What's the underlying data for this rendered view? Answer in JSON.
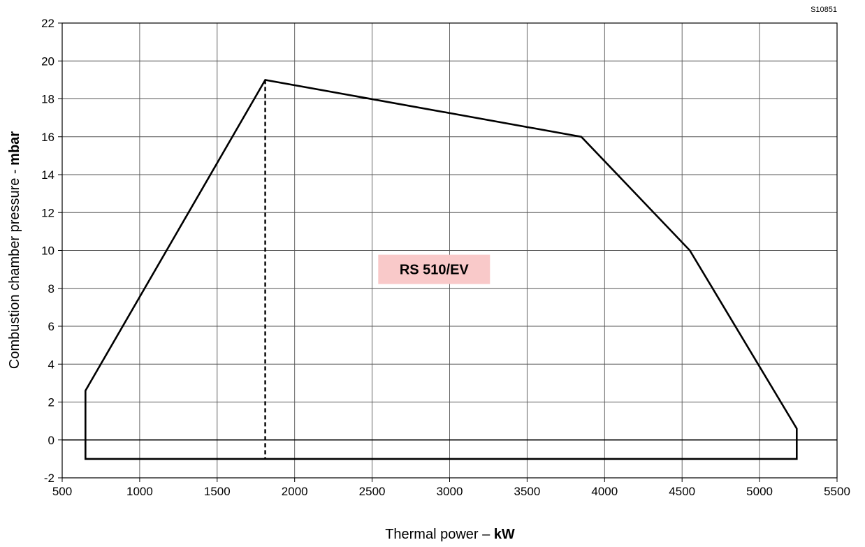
{
  "drawing_code": "S10851",
  "chart_data": {
    "type": "area",
    "xlabel_text": "Thermal power – ",
    "xlabel_unit": "kW",
    "ylabel_text": "Combustion chamber pressure - ",
    "ylabel_unit": "mbar",
    "xlim": [
      500,
      5500
    ],
    "ylim": [
      -2,
      22
    ],
    "x_ticks": [
      500,
      1000,
      1500,
      2000,
      2500,
      3000,
      3500,
      4000,
      4500,
      5000,
      5500
    ],
    "y_ticks": [
      -2,
      0,
      2,
      4,
      6,
      8,
      10,
      12,
      14,
      16,
      18,
      20,
      22
    ],
    "x_tick_labels": [
      "500",
      "1000",
      "1500",
      "2000",
      "2500",
      "3000",
      "3500",
      "4000",
      "4500",
      "5000",
      "5500"
    ],
    "y_tick_labels": [
      "-2",
      "0",
      "2",
      "4",
      "6",
      "8",
      "10",
      "12",
      "14",
      "16",
      "18",
      "20",
      "22"
    ],
    "grid": true,
    "series": [
      {
        "label": "RS 510/EV",
        "label_color": "#f9c9c9",
        "points": [
          {
            "x": 650,
            "y": -1
          },
          {
            "x": 650,
            "y": 2.6
          },
          {
            "x": 1810,
            "y": 19
          },
          {
            "x": 3850,
            "y": 16
          },
          {
            "x": 4550,
            "y": 10
          },
          {
            "x": 5240,
            "y": 0.6
          },
          {
            "x": 5240,
            "y": -1
          }
        ],
        "dashed_line": {
          "x": 1810,
          "y_from": -1,
          "y_to": 19
        }
      }
    ],
    "label_position": {
      "x": 2900,
      "y": 9
    }
  }
}
